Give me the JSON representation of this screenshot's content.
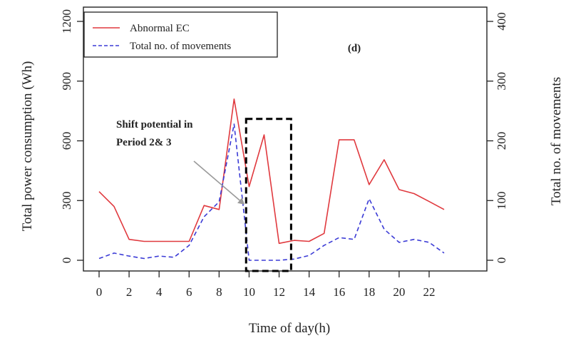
{
  "chart_data": {
    "type": "line",
    "panel_label": "(d)",
    "xlabel": "Time of day(h)",
    "ylabel_left": "Total power consumption (Wh)",
    "ylabel_right": "Total no. of movements",
    "xlim": [
      0,
      23
    ],
    "xticks": [
      0,
      2,
      4,
      6,
      8,
      10,
      12,
      14,
      16,
      18,
      20,
      22
    ],
    "ylim_left": [
      0,
      1200
    ],
    "yticks_left": [
      0,
      300,
      600,
      900,
      1200
    ],
    "ylim_right": [
      0,
      400
    ],
    "yticks_right": [
      0,
      100,
      200,
      300,
      400
    ],
    "grid": false,
    "legend_position": "top-left",
    "series": [
      {
        "name": "Abnormal EC",
        "axis": "left",
        "color": "#e0393e",
        "line_style": "solid",
        "x": [
          0,
          1,
          2,
          3,
          4,
          5,
          6,
          7,
          8,
          9,
          10,
          11,
          12,
          13,
          14,
          15,
          16,
          17,
          18,
          19,
          20,
          21,
          22,
          23
        ],
        "values": [
          345,
          270,
          105,
          95,
          95,
          95,
          95,
          275,
          255,
          810,
          370,
          630,
          85,
          100,
          95,
          135,
          605,
          605,
          380,
          505,
          355,
          335,
          295,
          255
        ]
      },
      {
        "name": "Total no. of movements",
        "axis": "right",
        "color": "#3b3bd6",
        "line_style": "dashed",
        "x": [
          0,
          1,
          2,
          3,
          4,
          5,
          6,
          7,
          8,
          9,
          10,
          11,
          12,
          13,
          14,
          15,
          16,
          17,
          18,
          19,
          20,
          21,
          22,
          23
        ],
        "values": [
          3,
          12,
          7,
          3,
          7,
          5,
          25,
          73,
          98,
          228,
          0,
          0,
          0,
          2,
          8,
          25,
          38,
          35,
          103,
          52,
          30,
          35,
          30,
          12
        ]
      }
    ],
    "annotation": {
      "text_lines": [
        "Shift potential in",
        "Period 2& 3"
      ],
      "arrow_to": [
        9.7,
        280
      ],
      "highlight_box_x": [
        9.8,
        12.8
      ],
      "highlight_box_y": [
        0,
        710
      ]
    }
  }
}
